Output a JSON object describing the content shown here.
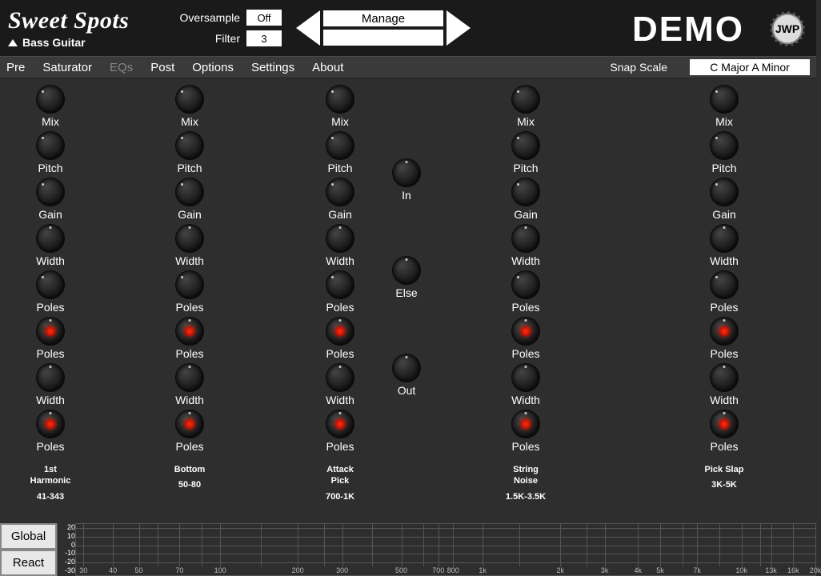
{
  "header": {
    "logo": "Sweet Spots",
    "preset": "Bass Guitar",
    "oversample_label": "Oversample",
    "oversample_value": "Off",
    "filter_label": "Filter",
    "filter_value": "3",
    "manage": "Manage",
    "demo": "DEMO",
    "badge": "JWP"
  },
  "menu": {
    "items": [
      "Pre",
      "Saturator",
      "EQs",
      "Post",
      "Options",
      "Settings",
      "About"
    ],
    "dim_index": 2,
    "snap_label": "Snap Scale",
    "scale": "C Major A Minor"
  },
  "columns": {
    "x_positions": [
      28,
      202,
      390,
      622,
      870
    ],
    "knob_rows": [
      {
        "label": "Mix",
        "pointer": "p-tl",
        "red": false
      },
      {
        "label": "Pitch",
        "pointer": "p-tl",
        "red": false
      },
      {
        "label": "Gain",
        "pointer": "p-tl",
        "red": false
      },
      {
        "label": "Width",
        "pointer": "p-t",
        "red": false
      },
      {
        "label": "Poles",
        "pointer": "p-tl",
        "red": false
      },
      {
        "label": "Poles",
        "pointer": "p-t",
        "red": true
      },
      {
        "label": "Width",
        "pointer": "p-t",
        "red": false
      },
      {
        "label": "Poles",
        "pointer": "p-t",
        "red": true
      }
    ],
    "bands": [
      {
        "name": "1st\nHarmonic",
        "range": "41-343"
      },
      {
        "name": "Bottom",
        "range": "50-80"
      },
      {
        "name": "Attack\nPick",
        "range": "700-1K"
      },
      {
        "name": "String\nNoise",
        "range": "1.5K-3.5K"
      },
      {
        "name": "Pick Slap",
        "range": "3K-5K"
      }
    ]
  },
  "center": {
    "knobs": [
      {
        "label": "In"
      },
      {
        "label": "Else"
      },
      {
        "label": "Out"
      }
    ]
  },
  "bottom": {
    "buttons": [
      "Global",
      "React"
    ],
    "db_ticks": [
      "20",
      "10",
      "0",
      "-10",
      "-20",
      "-30"
    ],
    "freq_ticks": [
      {
        "label": "30",
        "pct": 1
      },
      {
        "label": "40",
        "pct": 5
      },
      {
        "label": "50",
        "pct": 8.5
      },
      {
        "label": "70",
        "pct": 14
      },
      {
        "label": "100",
        "pct": 19.5
      },
      {
        "label": "200",
        "pct": 30
      },
      {
        "label": "300",
        "pct": 36
      },
      {
        "label": "500",
        "pct": 44
      },
      {
        "label": "700",
        "pct": 49
      },
      {
        "label": "800",
        "pct": 51
      },
      {
        "label": "1k",
        "pct": 55
      },
      {
        "label": "2k",
        "pct": 65.5
      },
      {
        "label": "3k",
        "pct": 71.5
      },
      {
        "label": "4k",
        "pct": 76
      },
      {
        "label": "5k",
        "pct": 79
      },
      {
        "label": "7k",
        "pct": 84
      },
      {
        "label": "10k",
        "pct": 90
      },
      {
        "label": "13k",
        "pct": 94
      },
      {
        "label": "16k",
        "pct": 97
      },
      {
        "label": "20k",
        "pct": 100
      }
    ],
    "hgrid_pcts": [
      8,
      25,
      42,
      58,
      75
    ],
    "vgrid_pcts": [
      1,
      5,
      8.5,
      11,
      14,
      17,
      19.5,
      25,
      30,
      33.5,
      36,
      40,
      44,
      47,
      49,
      51,
      55,
      60,
      65.5,
      69,
      71.5,
      76,
      79,
      82,
      84,
      87,
      90,
      92.5,
      94,
      97,
      100
    ]
  },
  "colors": {
    "bg": "#2e2e2e",
    "header_bg": "#1a1a1a",
    "menu_bg": "#3a3a3a",
    "white": "#ffffff",
    "grid": "#555555",
    "red_led": "#ff3010"
  }
}
